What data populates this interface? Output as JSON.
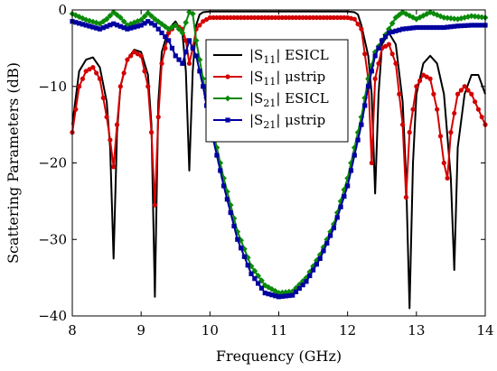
{
  "chart_data": {
    "type": "line",
    "xlabel": "Frequency (GHz)",
    "ylabel": "Scattering Parameters (dB)",
    "xlim": [
      8,
      14
    ],
    "ylim": [
      -40,
      0
    ],
    "xticks": [
      "8",
      "9",
      "10",
      "11",
      "12",
      "13",
      "14"
    ],
    "yticks": [
      "0",
      "−10",
      "−20",
      "−30",
      "−40"
    ],
    "grid": false,
    "legend_position": "top-center",
    "series": [
      {
        "name": "|S11| ESICL",
        "name_main": "|S",
        "name_sub": "11",
        "name_rest": "| ESICL",
        "color": "#000000",
        "marker": "none",
        "points": [
          [
            8.0,
            -15
          ],
          [
            8.1,
            -8
          ],
          [
            8.2,
            -6.5
          ],
          [
            8.3,
            -6.2
          ],
          [
            8.4,
            -7.5
          ],
          [
            8.5,
            -12
          ],
          [
            8.55,
            -18
          ],
          [
            8.6,
            -32.5
          ],
          [
            8.65,
            -16
          ],
          [
            8.7,
            -10
          ],
          [
            8.8,
            -6.5
          ],
          [
            8.9,
            -5.2
          ],
          [
            9.0,
            -5.5
          ],
          [
            9.1,
            -8.5
          ],
          [
            9.15,
            -15
          ],
          [
            9.2,
            -37.5
          ],
          [
            9.25,
            -12
          ],
          [
            9.3,
            -5.5
          ],
          [
            9.4,
            -2.5
          ],
          [
            9.5,
            -1.5
          ],
          [
            9.6,
            -3
          ],
          [
            9.65,
            -8
          ],
          [
            9.7,
            -21
          ],
          [
            9.75,
            -8
          ],
          [
            9.8,
            -2
          ],
          [
            9.85,
            -0.6
          ],
          [
            9.9,
            -0.3
          ],
          [
            10.0,
            -0.2
          ],
          [
            11.0,
            -0.2
          ],
          [
            12.0,
            -0.2
          ],
          [
            12.1,
            -0.3
          ],
          [
            12.15,
            -0.6
          ],
          [
            12.2,
            -2
          ],
          [
            12.3,
            -6
          ],
          [
            12.35,
            -11
          ],
          [
            12.4,
            -24
          ],
          [
            12.45,
            -11
          ],
          [
            12.5,
            -4.5
          ],
          [
            12.6,
            -3
          ],
          [
            12.7,
            -4.5
          ],
          [
            12.8,
            -12
          ],
          [
            12.85,
            -22
          ],
          [
            12.9,
            -39
          ],
          [
            12.95,
            -20
          ],
          [
            13.0,
            -11
          ],
          [
            13.1,
            -7
          ],
          [
            13.2,
            -6
          ],
          [
            13.3,
            -7
          ],
          [
            13.4,
            -11
          ],
          [
            13.5,
            -22
          ],
          [
            13.55,
            -34
          ],
          [
            13.6,
            -18
          ],
          [
            13.7,
            -11
          ],
          [
            13.8,
            -8.5
          ],
          [
            13.9,
            -8.5
          ],
          [
            14.0,
            -11
          ]
        ]
      },
      {
        "name": "|S11| μstrip",
        "name_main": "|S",
        "name_sub": "11",
        "name_rest": "| μstrip",
        "color": "#d40000",
        "marker": "circle",
        "points": [
          [
            8.0,
            -16
          ],
          [
            8.1,
            -10
          ],
          [
            8.2,
            -8
          ],
          [
            8.3,
            -7.5
          ],
          [
            8.4,
            -9
          ],
          [
            8.5,
            -14
          ],
          [
            8.55,
            -17
          ],
          [
            8.6,
            -20.5
          ],
          [
            8.65,
            -15
          ],
          [
            8.7,
            -10
          ],
          [
            8.8,
            -6.5
          ],
          [
            8.9,
            -5.5
          ],
          [
            9.0,
            -6
          ],
          [
            9.1,
            -10
          ],
          [
            9.15,
            -16
          ],
          [
            9.2,
            -25.5
          ],
          [
            9.25,
            -14
          ],
          [
            9.3,
            -7
          ],
          [
            9.4,
            -3
          ],
          [
            9.5,
            -2
          ],
          [
            9.6,
            -2.5
          ],
          [
            9.65,
            -4
          ],
          [
            9.7,
            -7
          ],
          [
            9.75,
            -5
          ],
          [
            9.8,
            -2.5
          ],
          [
            9.9,
            -1.5
          ],
          [
            10.0,
            -1
          ],
          [
            11.0,
            -1
          ],
          [
            12.0,
            -1
          ],
          [
            12.1,
            -1.2
          ],
          [
            12.2,
            -2.5
          ],
          [
            12.3,
            -9
          ],
          [
            12.35,
            -20
          ],
          [
            12.4,
            -9
          ],
          [
            12.5,
            -5
          ],
          [
            12.6,
            -4.5
          ],
          [
            12.7,
            -7
          ],
          [
            12.8,
            -15
          ],
          [
            12.85,
            -24.5
          ],
          [
            12.9,
            -16
          ],
          [
            13.0,
            -10
          ],
          [
            13.1,
            -8.5
          ],
          [
            13.2,
            -9
          ],
          [
            13.3,
            -13
          ],
          [
            13.4,
            -20
          ],
          [
            13.45,
            -22
          ],
          [
            13.5,
            -16
          ],
          [
            13.6,
            -11
          ],
          [
            13.7,
            -10
          ],
          [
            13.8,
            -11
          ],
          [
            13.9,
            -13
          ],
          [
            14.0,
            -15
          ]
        ]
      },
      {
        "name": "|S21| ESICL",
        "name_main": "|S",
        "name_sub": "21",
        "name_rest": "| ESICL",
        "color": "#0a8a0a",
        "marker": "diamond",
        "points": [
          [
            8.0,
            -0.5
          ],
          [
            8.2,
            -1.3
          ],
          [
            8.4,
            -1.8
          ],
          [
            8.5,
            -1.2
          ],
          [
            8.6,
            -0.3
          ],
          [
            8.7,
            -1.0
          ],
          [
            8.8,
            -2.0
          ],
          [
            9.0,
            -1.3
          ],
          [
            9.1,
            -0.4
          ],
          [
            9.2,
            -1.2
          ],
          [
            9.4,
            -2.5
          ],
          [
            9.5,
            -2.0
          ],
          [
            9.6,
            -3.0
          ],
          [
            9.7,
            -0.3
          ],
          [
            9.75,
            -0.5
          ],
          [
            9.8,
            -4
          ],
          [
            9.9,
            -9
          ],
          [
            10.0,
            -14
          ],
          [
            10.2,
            -22
          ],
          [
            10.4,
            -29
          ],
          [
            10.6,
            -33.5
          ],
          [
            10.8,
            -36
          ],
          [
            11.0,
            -37
          ],
          [
            11.2,
            -36.8
          ],
          [
            11.4,
            -35
          ],
          [
            11.6,
            -32
          ],
          [
            11.8,
            -28
          ],
          [
            12.0,
            -22
          ],
          [
            12.2,
            -14
          ],
          [
            12.3,
            -9
          ],
          [
            12.4,
            -5.5
          ],
          [
            12.5,
            -4
          ],
          [
            12.6,
            -2.5
          ],
          [
            12.7,
            -1.0
          ],
          [
            12.8,
            -0.3
          ],
          [
            13.0,
            -1.2
          ],
          [
            13.2,
            -0.3
          ],
          [
            13.4,
            -1.0
          ],
          [
            13.6,
            -1.2
          ],
          [
            13.8,
            -0.8
          ],
          [
            14.0,
            -1.0
          ]
        ]
      },
      {
        "name": "|S21| μstrip",
        "name_main": "|S",
        "name_sub": "21",
        "name_rest": "| μstrip",
        "color": "#0000a0",
        "marker": "square",
        "points": [
          [
            8.0,
            -1.5
          ],
          [
            8.2,
            -2
          ],
          [
            8.4,
            -2.5
          ],
          [
            8.6,
            -1.8
          ],
          [
            8.8,
            -2.5
          ],
          [
            9.0,
            -2
          ],
          [
            9.1,
            -1.5
          ],
          [
            9.2,
            -2
          ],
          [
            9.4,
            -4
          ],
          [
            9.5,
            -6
          ],
          [
            9.6,
            -7
          ],
          [
            9.7,
            -4
          ],
          [
            9.8,
            -6
          ],
          [
            9.9,
            -10
          ],
          [
            10.0,
            -15
          ],
          [
            10.2,
            -23
          ],
          [
            10.4,
            -30
          ],
          [
            10.6,
            -34.5
          ],
          [
            10.8,
            -37
          ],
          [
            11.0,
            -37.5
          ],
          [
            11.2,
            -37.3
          ],
          [
            11.4,
            -35.5
          ],
          [
            11.6,
            -32.5
          ],
          [
            11.8,
            -28.5
          ],
          [
            12.0,
            -23
          ],
          [
            12.2,
            -15
          ],
          [
            12.3,
            -10
          ],
          [
            12.4,
            -6
          ],
          [
            12.5,
            -4
          ],
          [
            12.6,
            -3
          ],
          [
            12.8,
            -2.5
          ],
          [
            13.0,
            -2.3
          ],
          [
            13.2,
            -2.3
          ],
          [
            13.4,
            -2.3
          ],
          [
            13.6,
            -2.1
          ],
          [
            13.8,
            -2.0
          ],
          [
            14.0,
            -2.0
          ]
        ]
      }
    ]
  }
}
